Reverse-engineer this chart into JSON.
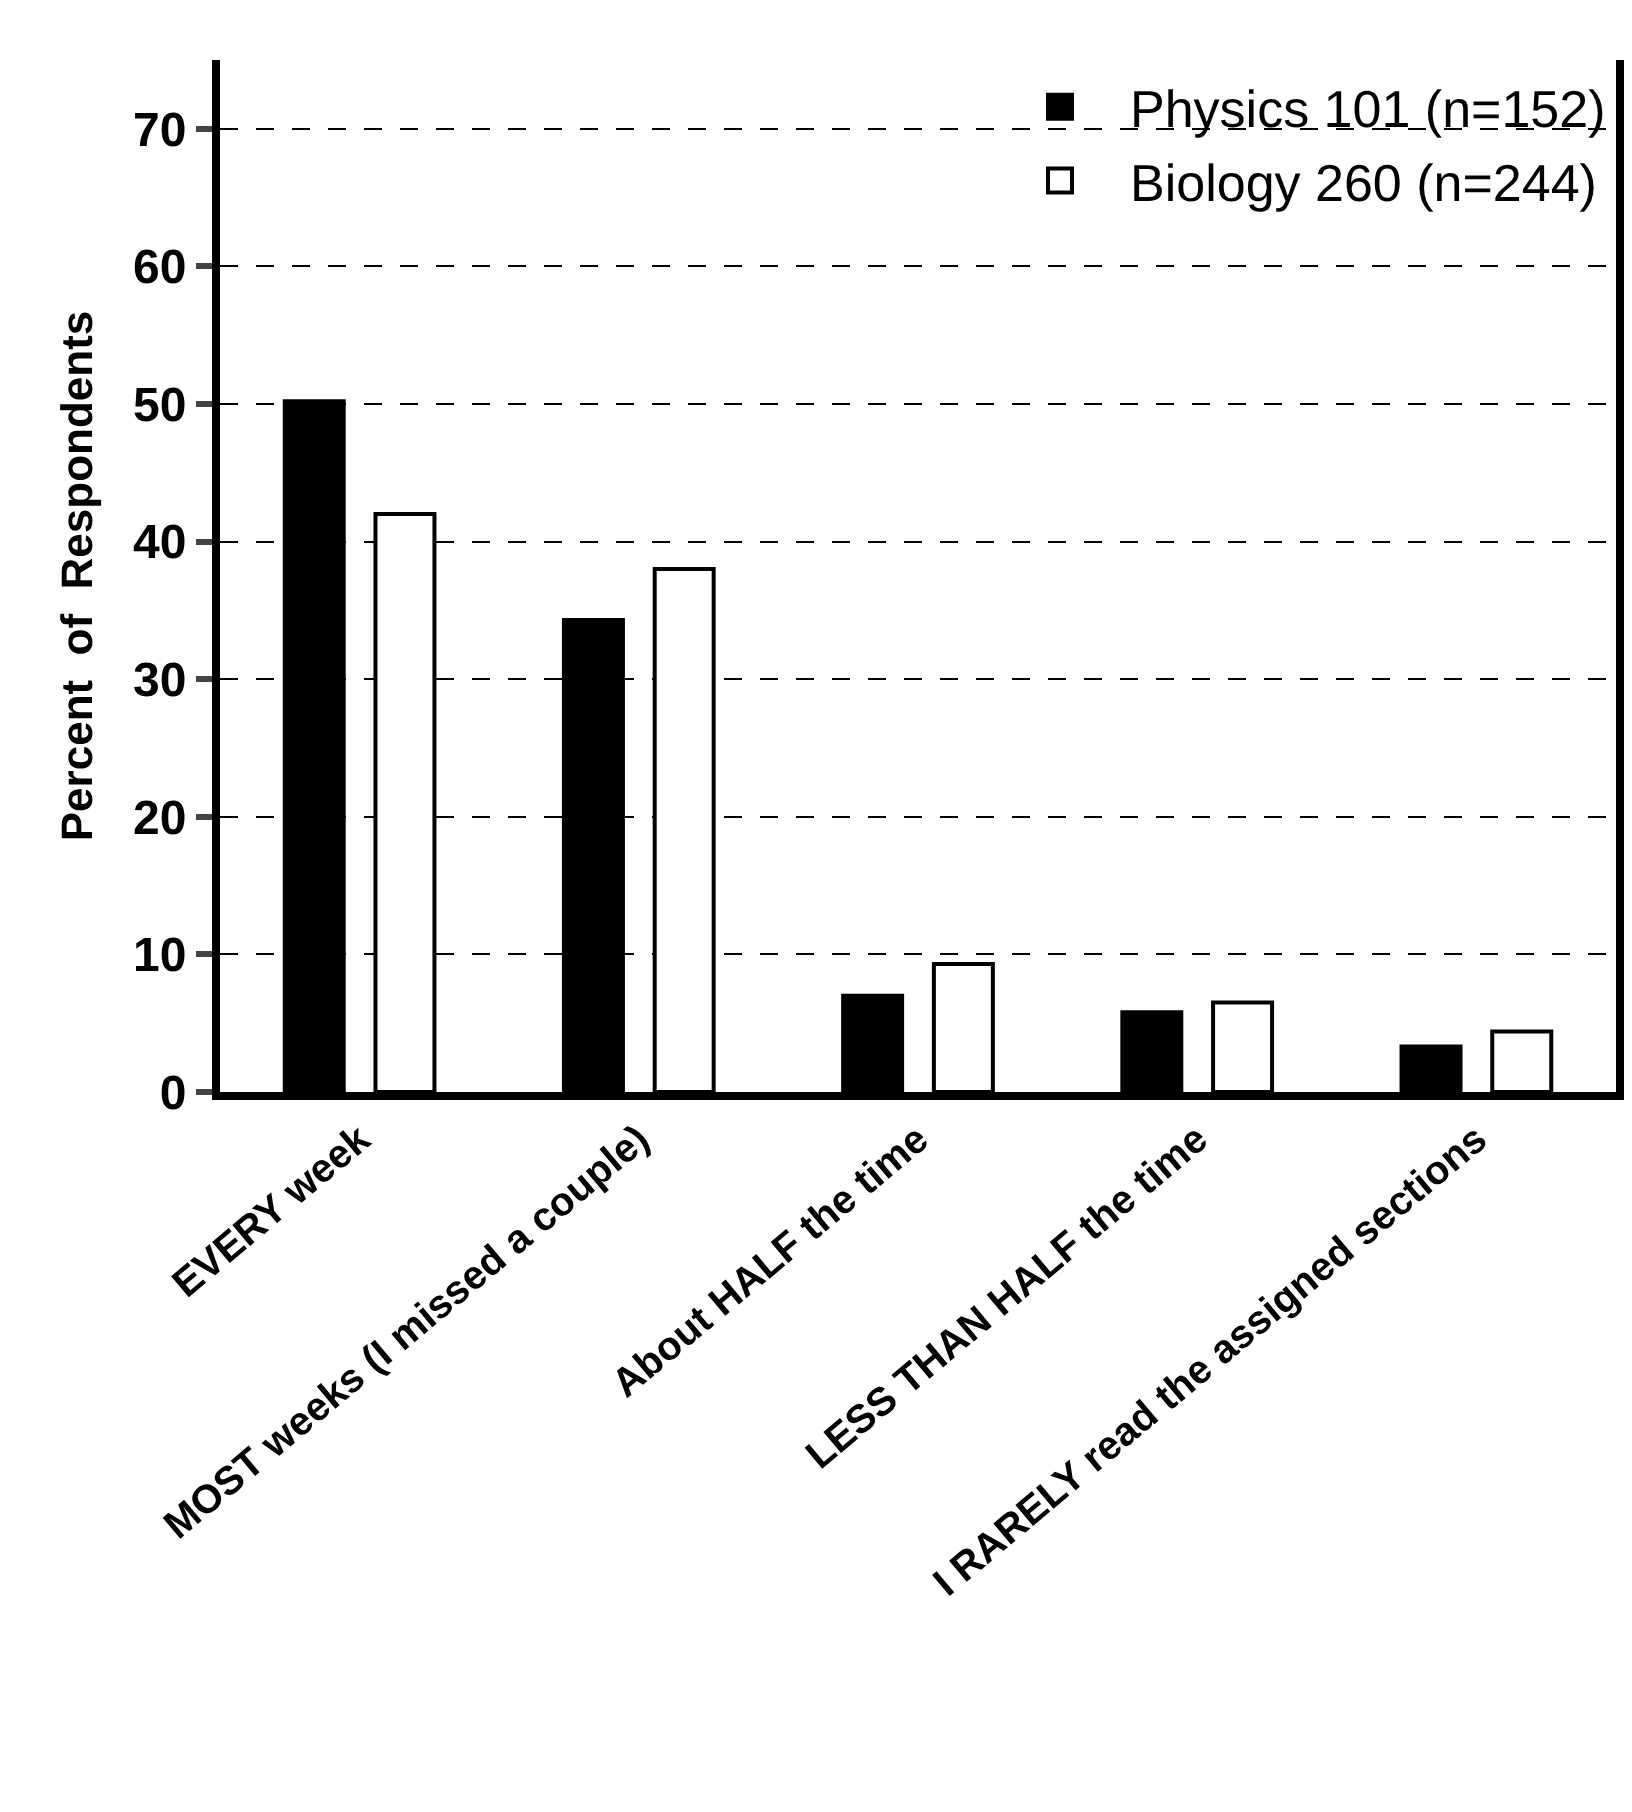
{
  "chart_data": {
    "type": "bar",
    "ylabel": "Percent  of  Respondents",
    "categories": [
      "EVERY week",
      "MOST weeks (I missed a couple)",
      "About HALF the time",
      "LESS THAN HALF the time",
      "I RARELY read the assigned sections"
    ],
    "series": [
      {
        "name": "Physics 101 (n=152)",
        "color": "#000000",
        "values": [
          50.2,
          34.3,
          7.0,
          5.8,
          3.3
        ]
      },
      {
        "name": "Biology 260 (n=244)",
        "color": "#ffffff",
        "values": [
          42.0,
          38.0,
          9.3,
          6.5,
          4.4
        ]
      }
    ],
    "ylim": [
      0,
      75
    ],
    "yticks": [
      0,
      10,
      20,
      30,
      40,
      50,
      60,
      70
    ],
    "grid": "y",
    "legend": "top right"
  }
}
